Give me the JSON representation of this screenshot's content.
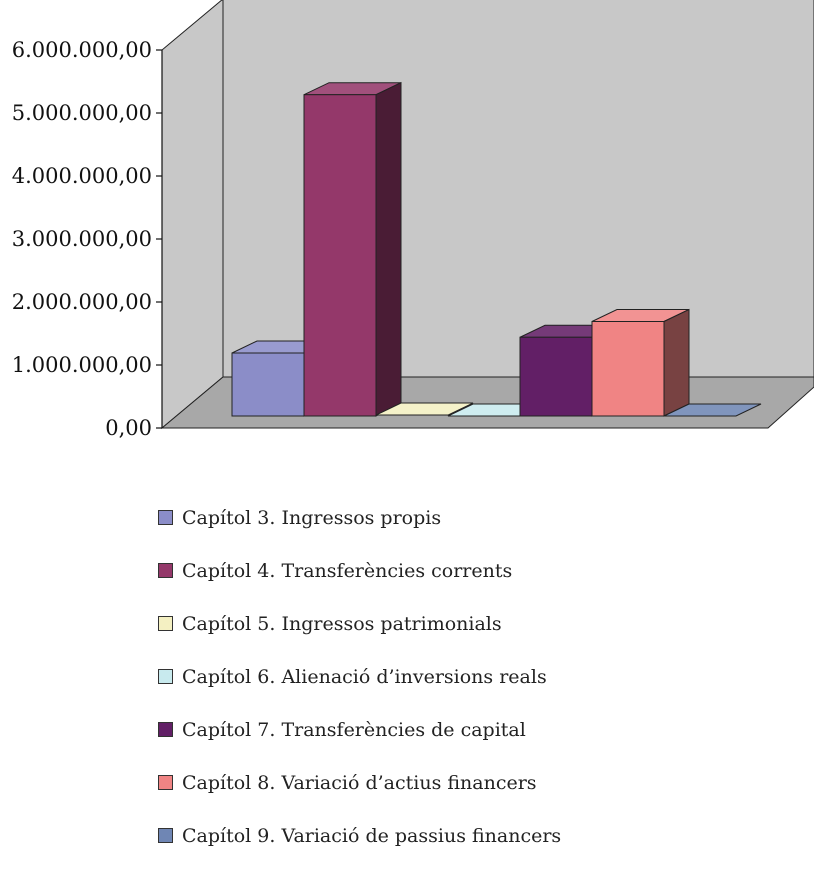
{
  "chart_data": {
    "type": "bar",
    "view": "3d",
    "categories": [
      "Capítol 3. Ingressos propis",
      "Capítol 4. Transferències corrents",
      "Capítol 5. Ingressos patrimonials",
      "Capítol 6. Alienació d’inversions reals",
      "Capítol 7. Transferències de capital",
      "Capítol 8. Variació d’actius financers",
      "Capítol 9. Variació de passius financers"
    ],
    "values": [
      1000000,
      5100000,
      15000,
      0,
      1250000,
      1500000,
      0
    ],
    "colors": [
      "#8b8dc8",
      "#94386a",
      "#f4f0c2",
      "#c8eaee",
      "#621f66",
      "#f08484",
      "#6f86b4"
    ],
    "yticks": [
      "0,00",
      "1.000.000,00",
      "2.000.000,00",
      "3.000.000,00",
      "4.000.000,00",
      "5.000.000,00",
      "6.000.000,00"
    ],
    "ylim": [
      0,
      6000000
    ],
    "grid": false,
    "legend_position": "bottom",
    "wall_color": "#c8c8c8",
    "floor_color": "#a8a8a8"
  }
}
